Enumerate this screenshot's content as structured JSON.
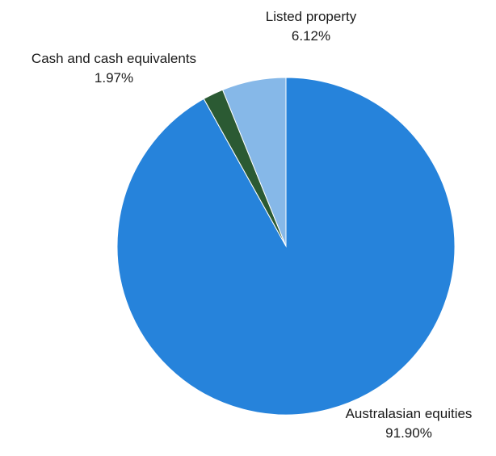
{
  "chart_data": {
    "type": "pie",
    "title": "",
    "start_angle_deg": 0,
    "direction": "clockwise",
    "slices": [
      {
        "label": "Australasian equities",
        "value": 91.9,
        "value_label": "91.90%",
        "color": "#2683DB"
      },
      {
        "label": "Cash and cash equivalents",
        "value": 1.97,
        "value_label": "1.97%",
        "color": "#2B5A33"
      },
      {
        "label": "Listed property",
        "value": 6.12,
        "value_label": "6.12%",
        "color": "#86B8E8"
      }
    ]
  }
}
